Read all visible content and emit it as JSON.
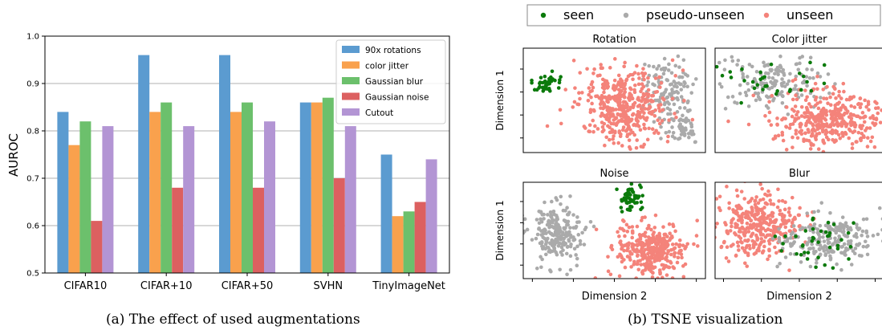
{
  "chart_data": [
    {
      "type": "bar",
      "title": "",
      "xlabel": "",
      "ylabel": "AUROC",
      "ylim": [
        0.5,
        1.0
      ],
      "yticks": [
        "0.5",
        "0.6",
        "0.7",
        "0.8",
        "0.9",
        "1.0"
      ],
      "grid": "y",
      "legend_position": "top-right",
      "categories": [
        "CIFAR10",
        "CIFAR+10",
        "CIFAR+50",
        "SVHN",
        "TinyImageNet"
      ],
      "series": [
        {
          "name": "90x rotations",
          "color": "#5b9bd0",
          "values": [
            0.84,
            0.96,
            0.96,
            0.86,
            0.75
          ]
        },
        {
          "name": "color jitter",
          "color": "#f9a14d",
          "values": [
            0.77,
            0.84,
            0.84,
            0.86,
            0.62
          ]
        },
        {
          "name": "Gaussian blur",
          "color": "#6cc06c",
          "values": [
            0.82,
            0.86,
            0.86,
            0.87,
            0.63
          ]
        },
        {
          "name": "Gaussian noise",
          "color": "#dc6060",
          "values": [
            0.61,
            0.68,
            0.68,
            0.7,
            0.65
          ]
        },
        {
          "name": "Cutout",
          "color": "#b395d4",
          "values": [
            0.81,
            0.81,
            0.82,
            0.81,
            0.74
          ]
        }
      ]
    },
    {
      "type": "scatter",
      "legend_position": "top",
      "legend": [
        {
          "name": "seen",
          "color": "#0b7a0b"
        },
        {
          "name": "pseudo-unseen",
          "color": "#aaaaaa"
        },
        {
          "name": "unseen",
          "color": "#f4837a"
        }
      ],
      "panels": [
        {
          "title": "Rotation",
          "xlabel": "",
          "ylabel": "Dimension 1"
        },
        {
          "title": "Color jitter",
          "xlabel": "",
          "ylabel": ""
        },
        {
          "title": "Noise",
          "xlabel": "Dimension 2",
          "ylabel": "Dimension 1"
        },
        {
          "title": "Blur",
          "xlabel": "Dimension 2",
          "ylabel": ""
        }
      ]
    }
  ],
  "captions": {
    "left": "(a)  The effect of used augmentations",
    "right": "(b)  TSNE visualization"
  }
}
